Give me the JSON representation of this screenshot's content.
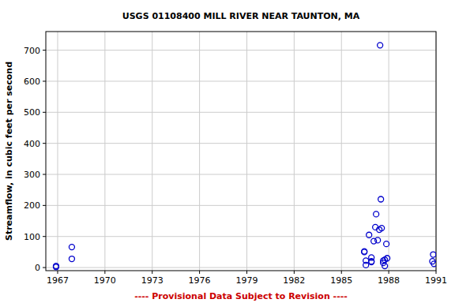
{
  "chart_data": {
    "type": "scatter",
    "title": "USGS 01108400 MILL RIVER NEAR TAUNTON, MA",
    "y_label": "Streamflow, in cubic feet per second",
    "footer": "---- Provisional Data Subject to Revision ----",
    "x": [
      1966.9,
      1966.9,
      1967.9,
      1967.9,
      1986.45,
      1986.45,
      1986.55,
      1986.55,
      1986.75,
      1986.9,
      1986.9,
      1986.9,
      1987.05,
      1987.15,
      1987.2,
      1987.3,
      1987.4,
      1987.45,
      1987.5,
      1987.55,
      1987.65,
      1987.65,
      1987.75,
      1987.75,
      1987.85,
      1987.9,
      1990.77,
      1990.82,
      1990.87
    ],
    "values": [
      5,
      2,
      66,
      28,
      52,
      50,
      22,
      8,
      105,
      32,
      20,
      18,
      85,
      130,
      172,
      88,
      122,
      716,
      220,
      127,
      22,
      15,
      25,
      5,
      76,
      30,
      20,
      42,
      12
    ],
    "color": "#0000cc",
    "marker": "circle",
    "xlim": [
      1966.25,
      1991
    ],
    "xticks": [
      1967,
      1970,
      1973,
      1976,
      1979,
      1982,
      1985,
      1988,
      1991
    ],
    "ylim": [
      -10,
      760
    ],
    "yticks": [
      0,
      100,
      200,
      300,
      400,
      500,
      600,
      700
    ],
    "grid": true
  }
}
